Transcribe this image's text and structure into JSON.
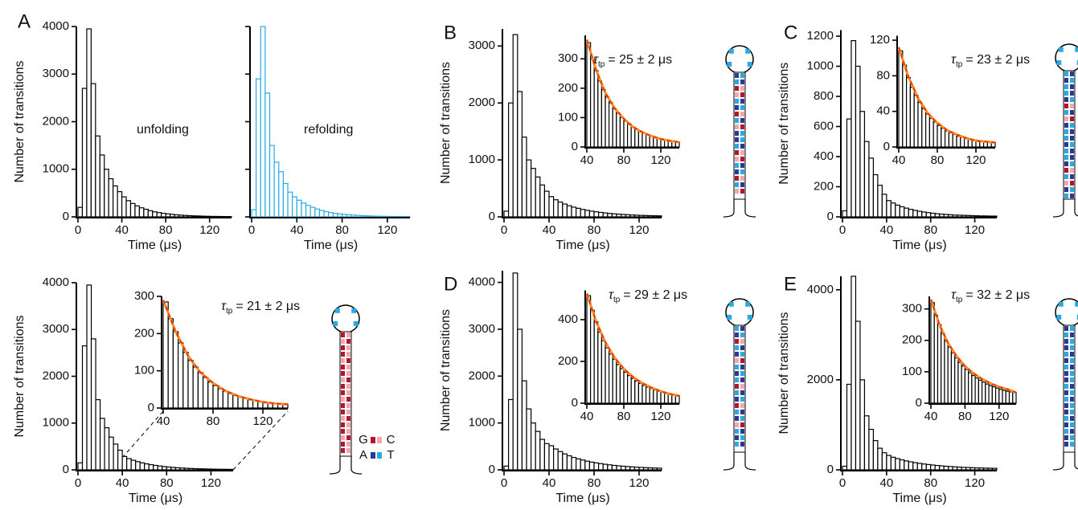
{
  "panel_labels": [
    "A",
    "B",
    "C",
    "D",
    "E"
  ],
  "base_legend": {
    "gc": [
      "G",
      "C"
    ],
    "at": [
      "A",
      "T"
    ]
  },
  "chart_data": [
    {
      "type": "histogram",
      "bins": [
        0,
        4,
        8,
        12,
        16,
        20,
        24,
        28,
        32,
        36,
        40,
        44,
        48,
        52,
        56,
        60,
        64,
        68,
        72,
        76,
        80,
        84,
        88,
        92,
        96,
        100,
        104,
        108,
        112,
        116,
        120,
        124,
        128,
        132,
        136,
        140
      ],
      "series": [
        {
          "color": "#000000",
          "values": [
            200,
            2700,
            3950,
            2800,
            1700,
            1300,
            1000,
            800,
            650,
            530,
            420,
            340,
            280,
            230,
            190,
            160,
            130,
            105,
            90,
            75,
            62,
            52,
            43,
            36,
            30,
            25,
            21,
            18,
            15,
            12,
            10,
            9,
            8,
            7,
            6
          ]
        }
      ],
      "xlim": [
        0,
        140
      ],
      "xticks": [
        0,
        40,
        80,
        120
      ],
      "ylim": [
        0,
        4000
      ],
      "yticks": [
        0,
        1000,
        2000,
        3000,
        4000
      ],
      "xlabel": "Time (μs)",
      "ylabel": "Number of transitions",
      "annotation": {
        "text": "unfolding"
      }
    },
    {
      "type": "histogram",
      "bins": [
        0,
        4,
        8,
        12,
        16,
        20,
        24,
        28,
        32,
        36,
        40,
        44,
        48,
        52,
        56,
        60,
        64,
        68,
        72,
        76,
        80,
        84,
        88,
        92,
        96,
        100,
        104,
        108,
        112,
        116,
        120,
        124,
        128,
        132,
        136,
        140
      ],
      "series": [
        {
          "color": "#29abe2",
          "values": [
            150,
            2900,
            4000,
            2600,
            1500,
            1150,
            950,
            700,
            520,
            420,
            350,
            290,
            240,
            200,
            165,
            135,
            110,
            90,
            75,
            62,
            52,
            44,
            37,
            31,
            26,
            22,
            18,
            15,
            13,
            11,
            9,
            8,
            7,
            6,
            5
          ]
        }
      ],
      "xlim": [
        0,
        140
      ],
      "xticks": [
        0,
        40,
        80,
        120
      ],
      "ylim": [
        0,
        4000
      ],
      "yticks": [
        0,
        1000,
        2000,
        3000,
        4000
      ],
      "ytick_labels": false,
      "xlabel": "Time (μs)",
      "annotation": {
        "text": "refolding"
      }
    },
    {
      "type": "histogram",
      "bins": [
        0,
        4,
        8,
        12,
        16,
        20,
        24,
        28,
        32,
        36,
        40,
        44,
        48,
        52,
        56,
        60,
        64,
        68,
        72,
        76,
        80,
        84,
        88,
        92,
        96,
        100,
        104,
        108,
        112,
        116,
        120,
        124,
        128,
        132,
        136,
        140
      ],
      "series": [
        {
          "color": "#000000",
          "values": [
            150,
            2650,
            3950,
            2800,
            1500,
            1100,
            900,
            700,
            550,
            420,
            285,
            240,
            205,
            175,
            150,
            128,
            110,
            95,
            82,
            70,
            60,
            52,
            45,
            39,
            34,
            29,
            26,
            22,
            20,
            17,
            15,
            13,
            12,
            11,
            10
          ]
        }
      ],
      "xlim": [
        0,
        140
      ],
      "xticks": [
        0,
        40,
        80,
        120
      ],
      "ylim": [
        0,
        4000
      ],
      "yticks": [
        0,
        1000,
        2000,
        3000,
        4000
      ],
      "xlabel": "Time (μs)",
      "ylabel": "Number of transitions"
    },
    {
      "type": "histogram",
      "bins": [
        40,
        44,
        48,
        52,
        56,
        60,
        64,
        68,
        72,
        76,
        80,
        84,
        88,
        92,
        96,
        100,
        104,
        108,
        112,
        116,
        120,
        124,
        128,
        132,
        136,
        140
      ],
      "series": [
        {
          "color": "#000000",
          "values": [
            285,
            240,
            205,
            175,
            150,
            128,
            110,
            95,
            82,
            70,
            60,
            52,
            45,
            39,
            34,
            29,
            26,
            22,
            20,
            17,
            15,
            13,
            12,
            11,
            10
          ]
        }
      ],
      "fit": {
        "color": "#f7941d",
        "x": [
          40,
          50,
          60,
          70,
          80,
          90,
          100,
          110,
          120,
          130,
          140
        ],
        "values": [
          290,
          205,
          140,
          95,
          67,
          46,
          32,
          23,
          16,
          12,
          10
        ]
      },
      "xlim": [
        40,
        140
      ],
      "xticks": [
        40,
        80,
        120
      ],
      "ylim": [
        0,
        300
      ],
      "yticks": [
        0,
        100,
        200,
        300
      ],
      "annotation": {
        "symbol": "τ",
        "subscript": "tp",
        "text": "= 21 ± 2 μs"
      }
    },
    {
      "type": "histogram",
      "bins": [
        0,
        4,
        8,
        12,
        16,
        20,
        24,
        28,
        32,
        36,
        40,
        44,
        48,
        52,
        56,
        60,
        64,
        68,
        72,
        76,
        80,
        84,
        88,
        92,
        96,
        100,
        104,
        108,
        112,
        116,
        120,
        124,
        128,
        132,
        136,
        140
      ],
      "series": [
        {
          "color": "#000000",
          "values": [
            100,
            2000,
            3200,
            2200,
            1400,
            1000,
            850,
            700,
            560,
            450,
            355,
            300,
            260,
            225,
            195,
            170,
            150,
            130,
            115,
            100,
            88,
            78,
            68,
            60,
            53,
            47,
            42,
            37,
            33,
            29,
            26,
            23,
            21,
            19,
            17
          ]
        }
      ],
      "xlim": [
        0,
        140
      ],
      "xticks": [
        0,
        40,
        80,
        120
      ],
      "ylim": [
        0,
        3300
      ],
      "yticks": [
        0,
        1000,
        2000,
        3000
      ],
      "xlabel": "Time (μs)",
      "ylabel": "Number of transitions"
    },
    {
      "type": "histogram",
      "bins": [
        40,
        44,
        48,
        52,
        56,
        60,
        64,
        68,
        72,
        76,
        80,
        84,
        88,
        92,
        96,
        100,
        104,
        108,
        112,
        116,
        120,
        124,
        128,
        132,
        136,
        140
      ],
      "series": [
        {
          "color": "#000000",
          "values": [
            355,
            300,
            260,
            225,
            195,
            170,
            150,
            130,
            115,
            100,
            88,
            78,
            68,
            60,
            53,
            47,
            42,
            37,
            33,
            29,
            26,
            23,
            21,
            19,
            17
          ]
        }
      ],
      "fit": {
        "color": "#f7941d",
        "x": [
          40,
          50,
          60,
          70,
          80,
          90,
          100,
          110,
          120,
          130,
          140
        ],
        "values": [
          365,
          262,
          185,
          132,
          96,
          68,
          50,
          37,
          27,
          21,
          16
        ]
      },
      "xlim": [
        40,
        140
      ],
      "xticks": [
        40,
        80,
        120
      ],
      "ylim": [
        0,
        380
      ],
      "yticks": [
        0,
        100,
        200,
        300
      ],
      "annotation": {
        "symbol": "τ",
        "subscript": "tp",
        "text": "= 25 ± 2 μs"
      }
    },
    {
      "type": "histogram",
      "bins": [
        0,
        4,
        8,
        12,
        16,
        20,
        24,
        28,
        32,
        36,
        40,
        44,
        48,
        52,
        56,
        60,
        64,
        68,
        72,
        76,
        80,
        84,
        88,
        92,
        96,
        100,
        104,
        108,
        112,
        116,
        120,
        124,
        128,
        132,
        136,
        140
      ],
      "series": [
        {
          "color": "#000000",
          "values": [
            40,
            650,
            1170,
            1000,
            700,
            500,
            390,
            280,
            210,
            150,
            108,
            92,
            78,
            67,
            58,
            50,
            43,
            37,
            32,
            28,
            24,
            21,
            18,
            16,
            14,
            12,
            11,
            10,
            9,
            8,
            7,
            6,
            6,
            5,
            5
          ]
        }
      ],
      "xlim": [
        0,
        140
      ],
      "xticks": [
        0,
        40,
        80,
        120
      ],
      "ylim": [
        0,
        1240
      ],
      "yticks": [
        0,
        200,
        400,
        600,
        800,
        1000,
        1200
      ],
      "xlabel": "Time (μs)",
      "ylabel": "Number of transitions"
    },
    {
      "type": "histogram",
      "bins": [
        40,
        44,
        48,
        52,
        56,
        60,
        64,
        68,
        72,
        76,
        80,
        84,
        88,
        92,
        96,
        100,
        104,
        108,
        112,
        116,
        120,
        124,
        128,
        132,
        136,
        140
      ],
      "series": [
        {
          "color": "#000000",
          "values": [
            108,
            92,
            78,
            67,
            58,
            50,
            43,
            37,
            32,
            28,
            24,
            21,
            18,
            16,
            14,
            12,
            11,
            10,
            9,
            8,
            7,
            6,
            6,
            5,
            5
          ]
        }
      ],
      "fit": {
        "color": "#f7941d",
        "x": [
          40,
          50,
          60,
          70,
          80,
          90,
          100,
          110,
          120,
          130,
          140
        ],
        "values": [
          112,
          79,
          55,
          38,
          27,
          19,
          14,
          10,
          7,
          6,
          5
        ]
      },
      "xlim": [
        40,
        140
      ],
      "xticks": [
        40,
        80,
        120
      ],
      "ylim": [
        0,
        125
      ],
      "yticks": [
        0,
        40,
        80,
        120
      ],
      "annotation": {
        "symbol": "τ",
        "subscript": "tp",
        "text": "= 23 ± 2 μs"
      }
    },
    {
      "type": "histogram",
      "bins": [
        0,
        4,
        8,
        12,
        16,
        20,
        24,
        28,
        32,
        36,
        40,
        44,
        48,
        52,
        56,
        60,
        64,
        68,
        72,
        76,
        80,
        84,
        88,
        92,
        96,
        100,
        104,
        108,
        112,
        116,
        120,
        124,
        128,
        132,
        136,
        140
      ],
      "series": [
        {
          "color": "#000000",
          "values": [
            80,
            1500,
            4200,
            3000,
            1900,
            1300,
            1000,
            820,
            650,
            560,
            515,
            445,
            390,
            340,
            300,
            265,
            235,
            210,
            185,
            165,
            148,
            132,
            118,
            106,
            95,
            85,
            77,
            70,
            63,
            57,
            52,
            47,
            43,
            39,
            36
          ]
        }
      ],
      "xlim": [
        0,
        140
      ],
      "xticks": [
        0,
        40,
        80,
        120
      ],
      "ylim": [
        0,
        4250
      ],
      "yticks": [
        0,
        1000,
        2000,
        3000,
        4000
      ],
      "xlabel": "Time (μs)",
      "ylabel": "Number of transitions"
    },
    {
      "type": "histogram",
      "bins": [
        40,
        44,
        48,
        52,
        56,
        60,
        64,
        68,
        72,
        76,
        80,
        84,
        88,
        92,
        96,
        100,
        104,
        108,
        112,
        116,
        120,
        124,
        128,
        132,
        136,
        140
      ],
      "series": [
        {
          "color": "#000000",
          "values": [
            515,
            445,
            390,
            340,
            300,
            265,
            235,
            210,
            185,
            165,
            148,
            132,
            118,
            106,
            95,
            85,
            77,
            70,
            63,
            57,
            52,
            47,
            43,
            39,
            36
          ]
        }
      ],
      "fit": {
        "color": "#f7941d",
        "x": [
          40,
          50,
          60,
          70,
          80,
          90,
          100,
          110,
          120,
          130,
          140
        ],
        "values": [
          525,
          392,
          292,
          218,
          165,
          125,
          96,
          74,
          57,
          44,
          35
        ]
      },
      "xlim": [
        40,
        140
      ],
      "xticks": [
        40,
        80,
        120
      ],
      "ylim": [
        0,
        540
      ],
      "yticks": [
        0,
        200,
        400
      ],
      "annotation": {
        "symbol": "τ",
        "subscript": "tp",
        "text": "= 29 ± 2 μs"
      }
    },
    {
      "type": "histogram",
      "bins": [
        0,
        4,
        8,
        12,
        16,
        20,
        24,
        28,
        32,
        36,
        40,
        44,
        48,
        52,
        56,
        60,
        64,
        68,
        72,
        76,
        80,
        84,
        88,
        92,
        96,
        100,
        104,
        108,
        112,
        116,
        120,
        124,
        128,
        132,
        136,
        140
      ],
      "series": [
        {
          "color": "#000000",
          "values": [
            80,
            1900,
            4300,
            3300,
            2000,
            1200,
            900,
            650,
            480,
            380,
            320,
            280,
            250,
            222,
            198,
            178,
            160,
            144,
            130,
            118,
            107,
            97,
            88,
            80,
            73,
            67,
            61,
            56,
            52,
            48,
            44,
            41,
            38,
            36,
            34
          ]
        }
      ],
      "xlim": [
        0,
        140
      ],
      "xticks": [
        0,
        40,
        80,
        120
      ],
      "ylim": [
        0,
        4300
      ],
      "yticks": [
        0,
        2000,
        4000
      ],
      "xlabel": "Time (μs)",
      "ylabel": "Number of transitions"
    },
    {
      "type": "histogram",
      "bins": [
        40,
        44,
        48,
        52,
        56,
        60,
        64,
        68,
        72,
        76,
        80,
        84,
        88,
        92,
        96,
        100,
        104,
        108,
        112,
        116,
        120,
        124,
        128,
        132,
        136,
        140
      ],
      "series": [
        {
          "color": "#000000",
          "values": [
            320,
            280,
            250,
            222,
            198,
            178,
            160,
            144,
            130,
            118,
            107,
            97,
            88,
            80,
            73,
            67,
            61,
            56,
            52,
            48,
            44,
            41,
            38,
            36,
            34
          ]
        }
      ],
      "fit": {
        "color": "#f7941d",
        "x": [
          40,
          50,
          60,
          70,
          80,
          90,
          100,
          110,
          120,
          130,
          140
        ],
        "values": [
          330,
          250,
          192,
          150,
          118,
          95,
          77,
          63,
          52,
          44,
          34
        ]
      },
      "xlim": [
        40,
        140
      ],
      "xticks": [
        40,
        80,
        120
      ],
      "ylim": [
        0,
        340
      ],
      "yticks": [
        0,
        100,
        200,
        300
      ],
      "annotation": {
        "symbol": "τ",
        "subscript": "tp",
        "text": "= 32 ± 2 μs"
      }
    }
  ]
}
